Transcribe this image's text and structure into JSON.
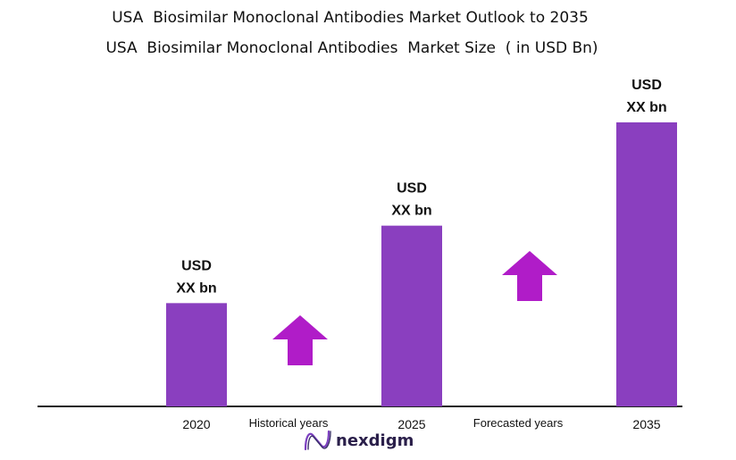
{
  "title": "USA  Biosimilar Monoclonal Antibodies Market Outlook to 2035",
  "subtitle": "USA  Biosimilar Monoclonal Antibodies  Market Size  ( in USD Bn)",
  "colors": {
    "bar": "#8a3fbf",
    "arrow": "#b01cc8",
    "axis": "#222222",
    "logo": "#2a1f4a"
  },
  "chart_data": {
    "type": "bar",
    "categories": [
      "2020",
      "2025",
      "2035"
    ],
    "values": [
      1.0,
      1.75,
      2.75
    ],
    "value_labels": [
      [
        "USD",
        "XX bn"
      ],
      [
        "USD",
        "XX bn"
      ],
      [
        "USD",
        "XX bn"
      ]
    ],
    "period_labels": [
      "Historical years",
      "Forecasted years"
    ],
    "arrows": [
      "up-arrow",
      "up-arrow"
    ],
    "ylim": [
      0,
      2.75
    ],
    "grid": false,
    "legend": "none"
  },
  "logo": {
    "text": "nexdigm",
    "icon": "nexdigm-n-icon"
  }
}
